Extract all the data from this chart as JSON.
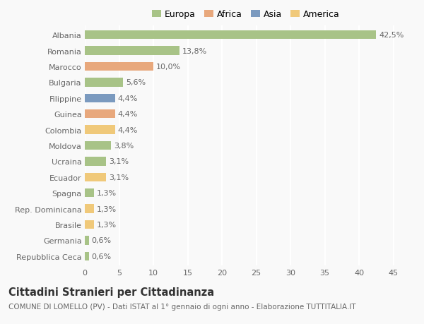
{
  "countries": [
    "Albania",
    "Romania",
    "Marocco",
    "Bulgaria",
    "Filippine",
    "Guinea",
    "Colombia",
    "Moldova",
    "Ucraina",
    "Ecuador",
    "Spagna",
    "Rep. Dominicana",
    "Brasile",
    "Germania",
    "Repubblica Ceca"
  ],
  "values": [
    42.5,
    13.8,
    10.0,
    5.6,
    4.4,
    4.4,
    4.4,
    3.8,
    3.1,
    3.1,
    1.3,
    1.3,
    1.3,
    0.6,
    0.6
  ],
  "labels": [
    "42,5%",
    "13,8%",
    "10,0%",
    "5,6%",
    "4,4%",
    "4,4%",
    "4,4%",
    "3,8%",
    "3,1%",
    "3,1%",
    "1,3%",
    "1,3%",
    "1,3%",
    "0,6%",
    "0,6%"
  ],
  "colors": [
    "#a8c387",
    "#a8c387",
    "#e8a87c",
    "#a8c387",
    "#7b9abf",
    "#e8a87c",
    "#f0c97a",
    "#a8c387",
    "#a8c387",
    "#f0c97a",
    "#a8c387",
    "#f0c97a",
    "#f0c97a",
    "#a8c387",
    "#a8c387"
  ],
  "legend_labels": [
    "Europa",
    "Africa",
    "Asia",
    "America"
  ],
  "legend_colors": [
    "#a8c387",
    "#e8a87c",
    "#7b9abf",
    "#f0c97a"
  ],
  "title": "Cittadini Stranieri per Cittadinanza",
  "subtitle": "COMUNE DI LOMELLO (PV) - Dati ISTAT al 1° gennaio di ogni anno - Elaborazione TUTTITALIA.IT",
  "xlim": [
    0,
    47
  ],
  "xticks": [
    0,
    5,
    10,
    15,
    20,
    25,
    30,
    35,
    40,
    45
  ],
  "background_color": "#f9f9f9",
  "grid_color": "#ffffff",
  "bar_height": 0.55,
  "label_fontsize": 8,
  "tick_fontsize": 8,
  "title_fontsize": 10.5,
  "subtitle_fontsize": 7.5
}
